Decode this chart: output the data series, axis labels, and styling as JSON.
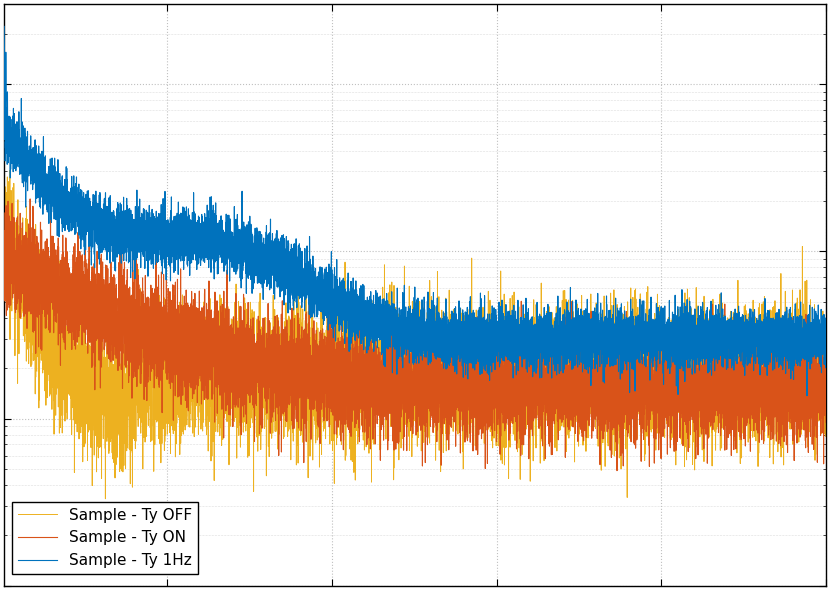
{
  "line1_label": "Sample - Ty 1Hz",
  "line2_label": "Sample - Ty ON",
  "line3_label": "Sample - Ty OFF",
  "line1_color": "#0072BD",
  "line2_color": "#D95319",
  "line3_color": "#EDB120",
  "background_color": "#FFFFFF",
  "grid_color": "#C0C0C0",
  "figsize": [
    8.3,
    5.9
  ],
  "dpi": 100,
  "xlim_min": 1,
  "xlim_max": 500,
  "ylim_min": 1e-10,
  "ylim_max": 3e-07
}
